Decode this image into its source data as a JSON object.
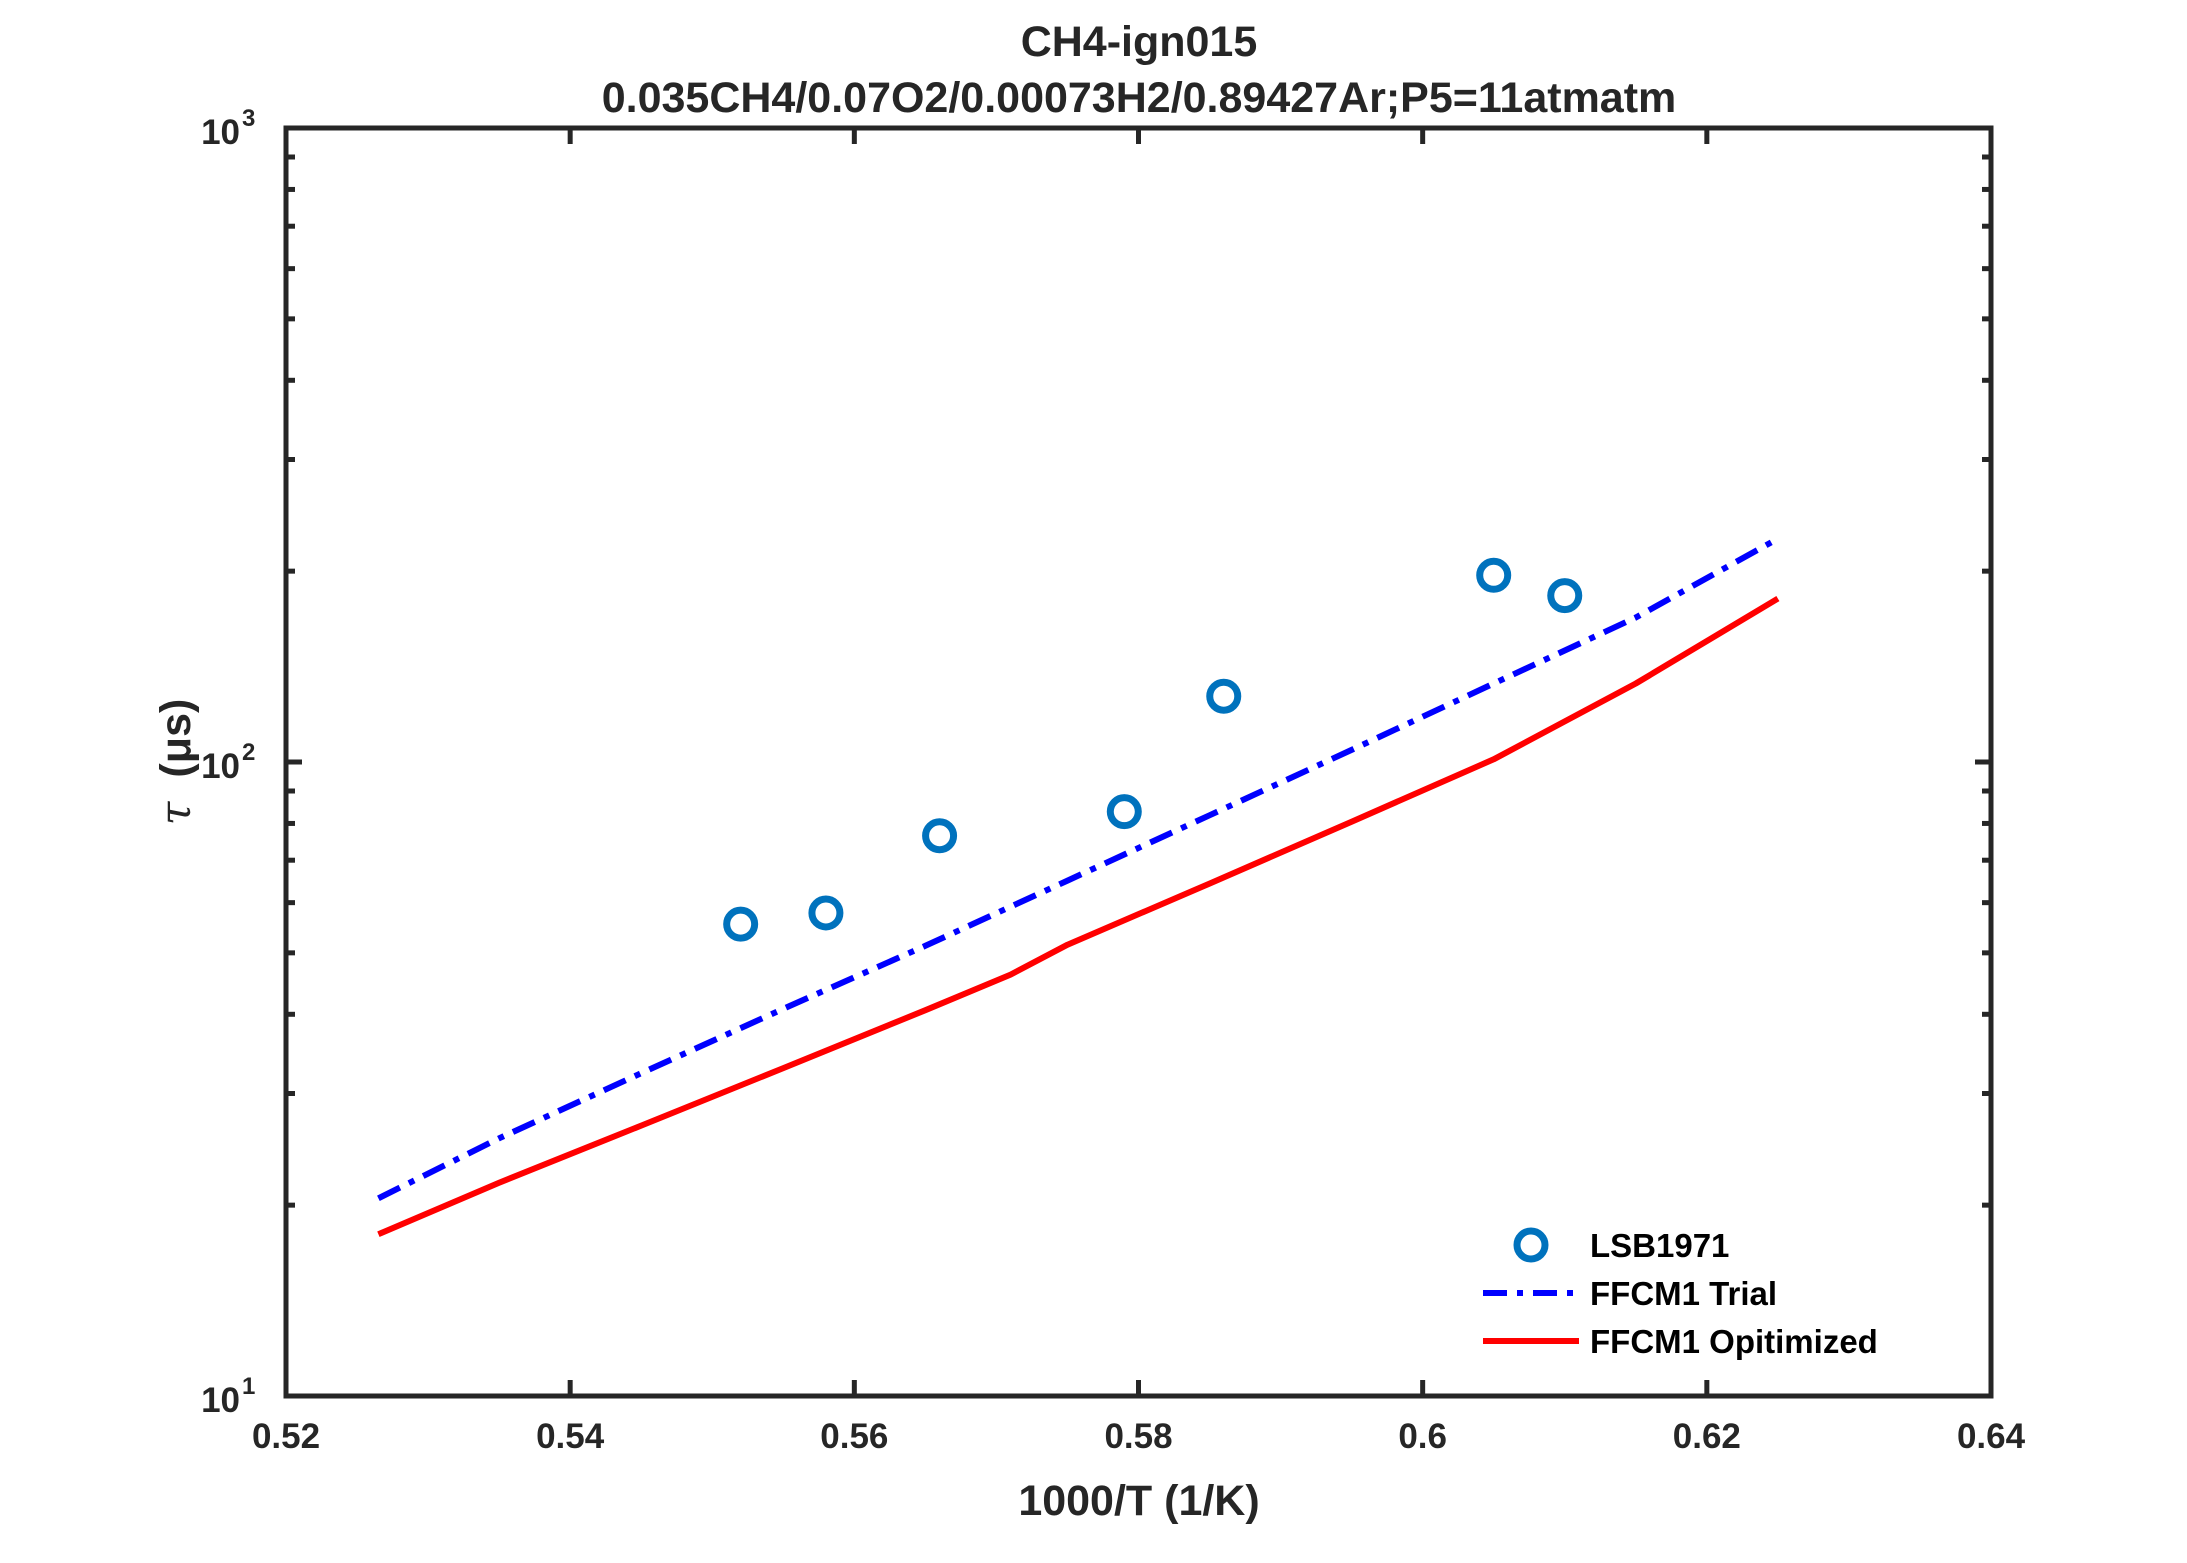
{
  "chart_data": {
    "type": "line",
    "title": "CH4-ign015",
    "subtitle": "0.035CH4/0.07O2/0.00073H2/0.89427Ar;P5=11atmatm",
    "xlabel": "1000/T (1/K)",
    "ylabel": {
      "symbol": "τ",
      "unit": "(μs)"
    },
    "xlim": [
      0.52,
      0.64
    ],
    "ylim": [
      10,
      1000
    ],
    "yscale": "log",
    "xticks": [
      "0.52",
      "0.54",
      "0.56",
      "0.58",
      "0.6",
      "0.62",
      "0.64"
    ],
    "yticks": [
      {
        "base": "10",
        "exp": "1"
      },
      {
        "base": "10",
        "exp": "2"
      },
      {
        "base": "10",
        "exp": "3"
      }
    ],
    "grid": false,
    "legend_position": "bottom-right",
    "series": [
      {
        "name": "LSB1971",
        "style": "markers",
        "color": "#0072BD",
        "x": [
          0.552,
          0.558,
          0.566,
          0.579,
          0.586,
          0.605,
          0.61
        ],
        "y": [
          55.5,
          57.8,
          76.5,
          83.5,
          127,
          197,
          183
        ]
      },
      {
        "name": "FFCM1 Trial",
        "style": "dashdot",
        "color": "#0000FF",
        "x": [
          0.5265,
          0.535,
          0.545,
          0.555,
          0.565,
          0.575,
          0.585,
          0.595,
          0.605,
          0.615,
          0.625
        ],
        "y": [
          20.5,
          25.5,
          32.3,
          40.8,
          51.3,
          65.0,
          82.4,
          104.5,
          133,
          169,
          225
        ]
      },
      {
        "name": "FFCM1 Opitimized",
        "style": "solid",
        "color": "#FF0000",
        "x": [
          0.5265,
          0.535,
          0.545,
          0.555,
          0.565,
          0.571,
          0.575,
          0.585,
          0.595,
          0.605,
          0.615,
          0.625
        ],
        "y": [
          18.0,
          21.7,
          26.7,
          32.9,
          40.6,
          46.2,
          51.5,
          64.3,
          80.5,
          101,
          133,
          181
        ]
      }
    ]
  }
}
